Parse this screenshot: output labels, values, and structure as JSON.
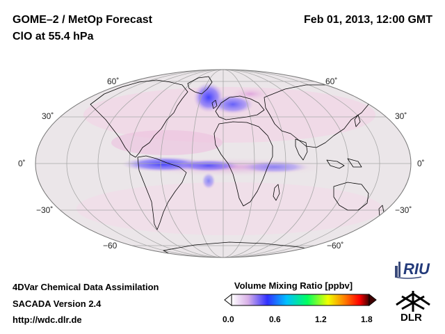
{
  "header": {
    "title": "GOME–2 / MetOp Forecast",
    "subtitle": "ClO at 55.4 hPa",
    "datetime": "Feb 01, 2013, 12:00 GMT"
  },
  "map": {
    "projection": "Mollweide",
    "lat_labels_left": [
      "60˚",
      "30˚",
      "0˚",
      "−30˚",
      "−60"
    ],
    "lat_labels_right": [
      "60˚",
      "30˚",
      "0˚",
      "−30˚",
      "−60˚"
    ],
    "colors": {
      "ocean_bg": "#eae6e8",
      "coast": "#000000",
      "graticule": "#a8a8a8",
      "low_clo": "#f0d8e6",
      "high_clo": "#3a3aff"
    }
  },
  "colorbar": {
    "title": "Volume Mixing Ratio [ppbv]",
    "ticks": [
      "0.0",
      "0.6",
      "1.2",
      "1.8"
    ],
    "range": [
      0.0,
      1.8
    ],
    "colors": [
      "#ffffff",
      "#d8b0e8",
      "#3030ff",
      "#00c0ff",
      "#00ff60",
      "#f0ff00",
      "#ff8000",
      "#ff0000",
      "#400000"
    ]
  },
  "footer": {
    "line1": "4DVar Chemical Data Assimilation",
    "line2": "SACADA Version 2.4",
    "url": "http://wdc.dlr.de"
  },
  "logos": {
    "riu_text": "RIU",
    "dlr_text": "DLR"
  }
}
